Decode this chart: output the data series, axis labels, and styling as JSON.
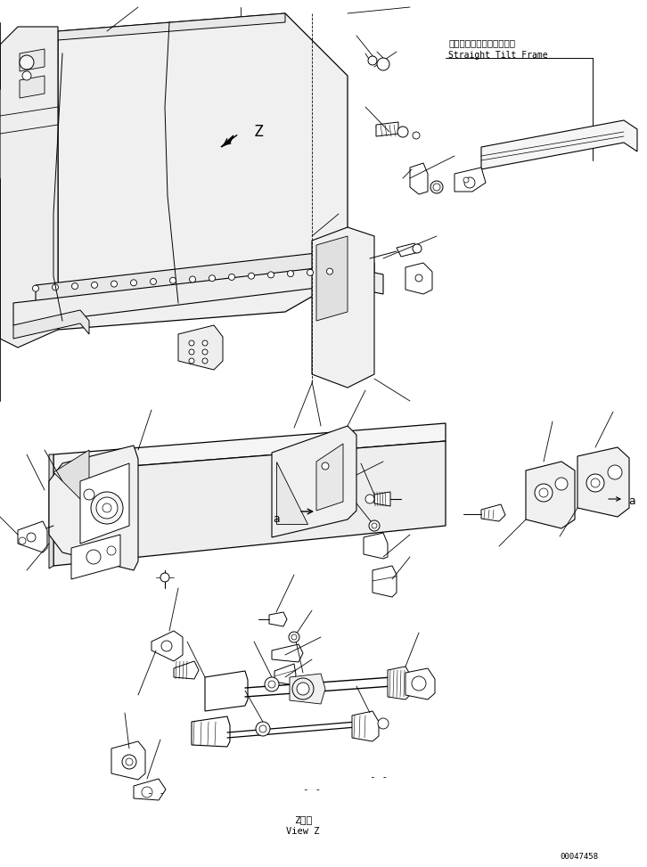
{
  "bg_color": "#ffffff",
  "line_color": "#000000",
  "title_jp": "ストレートチルトフレーム",
  "title_en": "Straight Tilt Frame",
  "label_z_view_jp": "Z　視",
  "label_z_view_en": "View Z",
  "part_number": "00047458",
  "figsize": [
    7.26,
    9.73
  ],
  "dpi": 100
}
